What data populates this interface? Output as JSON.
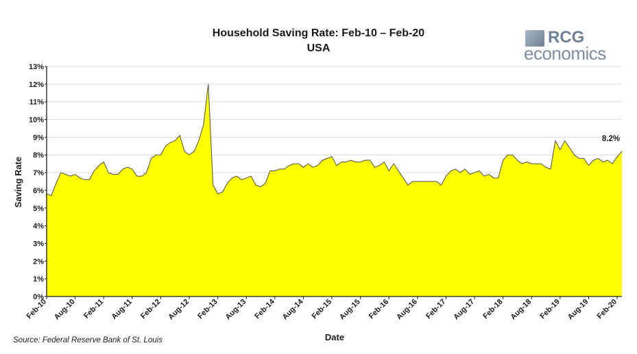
{
  "chart_data": {
    "type": "area",
    "title": "Household Saving Rate: Feb-10 – Feb-20",
    "subtitle": "USA",
    "xlabel": "Date",
    "ylabel": "Saving Rate",
    "source": "Source: Federal Reserve Bank of St. Louis",
    "ylim": [
      0,
      13
    ],
    "y_ticks": [
      "0%",
      "1%",
      "2%",
      "3%",
      "4%",
      "5%",
      "6%",
      "7%",
      "8%",
      "9%",
      "10%",
      "11%",
      "12%",
      "13%"
    ],
    "x_ticks": [
      "Feb-10",
      "Aug-10",
      "Feb-11",
      "Aug-11",
      "Feb-12",
      "Aug-12",
      "Feb-13",
      "Aug-13",
      "Feb-14",
      "Aug-14",
      "Feb-15",
      "Aug-15",
      "Feb-16",
      "Aug-16",
      "Feb-17",
      "Aug-17",
      "Feb-18",
      "Aug-18",
      "Feb-19",
      "Aug-19",
      "Feb-20"
    ],
    "grid": true,
    "fill_color": "#ffff00",
    "line_color": "#4d4d4d",
    "annotation": "8.2%",
    "x_start": "2010-02",
    "series": [
      {
        "values": [
          5.8,
          5.7,
          6.4,
          7.0,
          6.9,
          6.8,
          6.9,
          6.7,
          6.6,
          6.6,
          7.1,
          7.4,
          7.6,
          7.0,
          6.9,
          6.9,
          7.2,
          7.3,
          7.2,
          6.8,
          6.8,
          7.0,
          7.8,
          8.0,
          8.0,
          8.5,
          8.7,
          8.8,
          9.1,
          8.2,
          8.0,
          8.2,
          8.8,
          9.7,
          12.0,
          6.3,
          5.8,
          5.9,
          6.4,
          6.7,
          6.8,
          6.6,
          6.7,
          6.8,
          6.3,
          6.2,
          6.4,
          7.1,
          7.1,
          7.2,
          7.2,
          7.4,
          7.5,
          7.5,
          7.3,
          7.5,
          7.3,
          7.4,
          7.7,
          7.8,
          7.9,
          7.4,
          7.6,
          7.6,
          7.7,
          7.6,
          7.6,
          7.7,
          7.7,
          7.3,
          7.4,
          7.6,
          7.1,
          7.5,
          7.1,
          6.7,
          6.3,
          6.5,
          6.5,
          6.5,
          6.5,
          6.5,
          6.5,
          6.3,
          6.8,
          7.1,
          7.2,
          7.0,
          7.2,
          6.9,
          7.0,
          7.1,
          6.8,
          6.9,
          6.7,
          6.7,
          7.7,
          8.0,
          8.0,
          7.7,
          7.5,
          7.6,
          7.5,
          7.5,
          7.5,
          7.3,
          7.2,
          8.8,
          8.3,
          8.8,
          8.4,
          8.0,
          7.8,
          7.8,
          7.4,
          7.7,
          7.8,
          7.6,
          7.7,
          7.5,
          7.9,
          8.2
        ]
      }
    ]
  }
}
